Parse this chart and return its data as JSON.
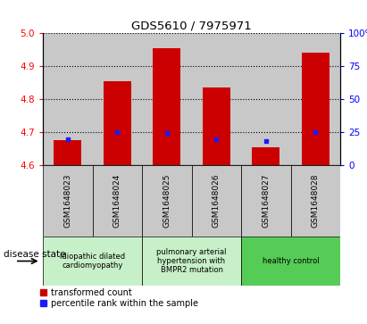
{
  "title": "GDS5610 / 7975971",
  "samples": [
    "GSM1648023",
    "GSM1648024",
    "GSM1648025",
    "GSM1648026",
    "GSM1648027",
    "GSM1648028"
  ],
  "red_values": [
    4.675,
    4.855,
    4.955,
    4.835,
    4.655,
    4.94
  ],
  "blue_values": [
    4.678,
    4.7,
    4.698,
    4.678,
    4.672,
    4.7
  ],
  "ylim": [
    4.6,
    5.0
  ],
  "yticks_left": [
    4.6,
    4.7,
    4.8,
    4.9,
    5.0
  ],
  "yticks_right": [
    0,
    25,
    50,
    75,
    100
  ],
  "bar_width": 0.55,
  "red_color": "#cc0000",
  "blue_color": "#1a1aff",
  "bg_color": "#c8c8c8",
  "legend_red": "transformed count",
  "legend_blue": "percentile rank within the sample",
  "disease_state_label": "disease state",
  "group_configs": [
    {
      "start": 0,
      "end": 1,
      "label": "idiopathic dilated\ncardiomyopathy",
      "color": "#c8f0c8"
    },
    {
      "start": 2,
      "end": 3,
      "label": "pulmonary arterial\nhypertension with\nBMPR2 mutation",
      "color": "#c8f0c8"
    },
    {
      "start": 4,
      "end": 5,
      "label": "healthy control",
      "color": "#55cc55"
    }
  ]
}
